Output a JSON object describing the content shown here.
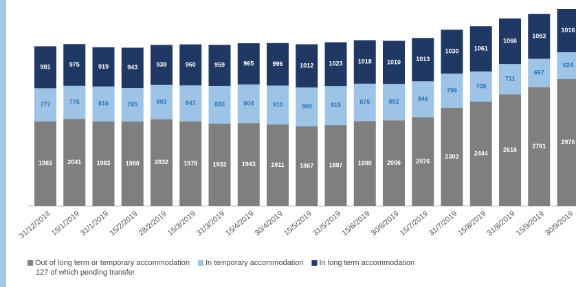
{
  "chart_data": {
    "type": "stacked_bar",
    "categories": [
      "31/12/2018",
      "15/1/2019",
      "31/1/2019",
      "15/2/2019",
      "28/2/2019",
      "15/3/2019",
      "31/3/2019",
      "15/4/2019",
      "30/4/2019",
      "15/5/2019",
      "31/5/2019",
      "15/6/2019",
      "30/6/2019",
      "15/7/2019",
      "31/7/2019",
      "15/8/2019",
      "31/8/2019",
      "15/9/2019",
      "30/9/2019"
    ],
    "series": [
      {
        "name": "Out of long term or temporary accommodation",
        "color": "#7f7f7f",
        "label_color": "#ffffff",
        "values": [
          1983,
          2041,
          1983,
          1980,
          2032,
          1978,
          1932,
          1943,
          1911,
          1867,
          1897,
          1990,
          2006,
          2076,
          2303,
          2444,
          2616,
          2781,
          2976
        ]
      },
      {
        "name": "In temporary accommodation",
        "color": "#9dc3e6",
        "label_color": "#2e75b6",
        "values": [
          777,
          776,
          816,
          785,
          803,
          847,
          883,
          904,
          910,
          909,
          915,
          875,
          852,
          846,
          796,
          705,
          711,
          667,
          624
        ]
      },
      {
        "name": "In long term accommodation",
        "color": "#203864",
        "label_color": "#ffffff",
        "values": [
          981,
          975,
          919,
          943,
          938,
          960,
          959,
          965,
          996,
          1012,
          1023,
          1018,
          1010,
          1013,
          1030,
          1061,
          1066,
          1053,
          1016
        ]
      }
    ],
    "annotation": "127 of which pending transfer"
  }
}
